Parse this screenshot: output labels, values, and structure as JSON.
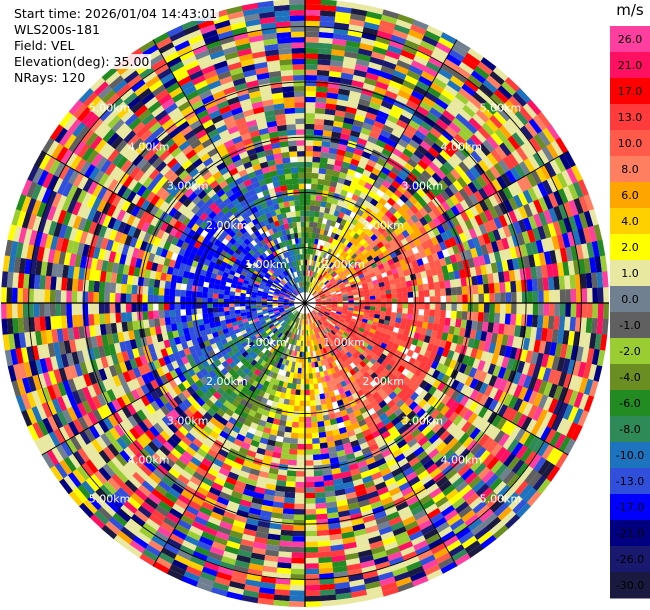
{
  "info": {
    "start_time": "Start time: 2026/01/04 14:43:01",
    "instrument": "WLS200s-181",
    "field": "Field: VEL",
    "elevation": "Elevation(deg): 35.00",
    "nrays": "NRays: 120"
  },
  "chart_data": {
    "type": "heatmap",
    "subtype": "polar-ppi",
    "title": "",
    "nrays": 120,
    "max_range_km": 5.5,
    "range_rings_km": [
      1.0,
      2.0,
      3.0,
      4.0,
      5.0
    ],
    "ring_labels": [
      "1.00km",
      "2.00km",
      "3.00km",
      "4.00km",
      "5.00km"
    ],
    "colorbar": {
      "unit": "m/s",
      "ticks": [
        "26.0",
        "21.0",
        "17.0",
        "13.0",
        "10.0",
        "8.0",
        "6.0",
        "4.0",
        "2.0",
        "1.0",
        "0.0",
        "-1.0",
        "-2.0",
        "-4.0",
        "-6.0",
        "-8.0",
        "-10.0",
        "-13.0",
        "-17.0",
        "-21.0",
        "-26.0",
        "-30.0"
      ],
      "colors": [
        "#ff3fa0",
        "#ff1060",
        "#ff0000",
        "#ff3b3b",
        "#ff5a4a",
        "#ff7f60",
        "#ffa500",
        "#ffd000",
        "#ffff00",
        "#e8e8a0",
        "#708090",
        "#606060",
        "#9acd32",
        "#6b8e23",
        "#228b22",
        "#2e8b57",
        "#1e73be",
        "#3050dc",
        "#0000ff",
        "#000080",
        "#191970",
        "#1a1a40"
      ],
      "sampling": "Color bins between ticks from 26.0 down to -30.0 m/s"
    }
  }
}
